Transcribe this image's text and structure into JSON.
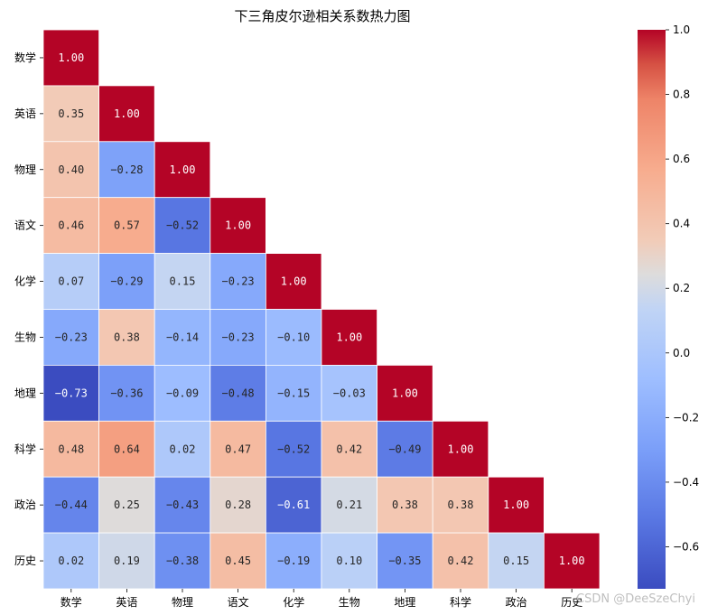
{
  "chart_data": {
    "type": "heatmap",
    "title": "下三角皮尔逊相关系数热力图",
    "variables": [
      "数学",
      "英语",
      "物理",
      "语文",
      "化学",
      "生物",
      "地理",
      "科学",
      "政治",
      "历史"
    ],
    "matrix": [
      [
        1.0
      ],
      [
        0.35,
        1.0
      ],
      [
        0.4,
        -0.28,
        1.0
      ],
      [
        0.46,
        0.57,
        -0.52,
        1.0
      ],
      [
        0.07,
        -0.29,
        0.15,
        -0.23,
        1.0
      ],
      [
        -0.23,
        0.38,
        -0.14,
        -0.23,
        -0.1,
        1.0
      ],
      [
        -0.73,
        -0.36,
        -0.09,
        -0.48,
        -0.15,
        -0.03,
        1.0
      ],
      [
        0.48,
        0.64,
        0.02,
        0.47,
        -0.52,
        0.42,
        -0.49,
        1.0
      ],
      [
        -0.44,
        0.25,
        -0.43,
        0.28,
        -0.61,
        0.21,
        0.38,
        0.38,
        1.0
      ],
      [
        0.02,
        0.19,
        -0.38,
        0.45,
        -0.19,
        0.1,
        -0.35,
        0.42,
        0.15,
        1.0
      ]
    ],
    "mask": "upper-triangle",
    "colormap": "coolwarm",
    "vmin": -0.73,
    "vmax": 1.0,
    "colorbar_ticks": [
      1.0,
      0.8,
      0.6,
      0.4,
      0.2,
      0.0,
      -0.2,
      -0.4,
      -0.6
    ],
    "colorbar_tick_labels": [
      "1.0",
      "0.8",
      "0.6",
      "0.4",
      "0.2",
      "0.0",
      "−0.2",
      "−0.4",
      "−0.6"
    ],
    "annotation_format": "0.00"
  },
  "watermark": "CSDN @DeeSzeChyi"
}
